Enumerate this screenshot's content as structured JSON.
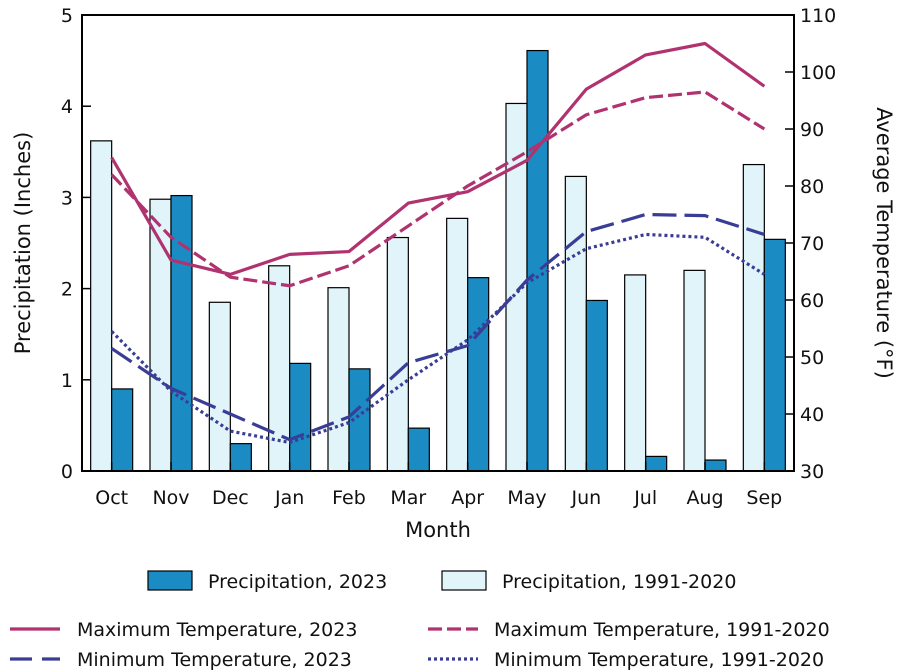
{
  "chart_data": {
    "type": "bar",
    "xlabel": "Month",
    "ylabel_left": "Precipitation (Inches)",
    "ylabel_right": "Average Temperature (°F)",
    "ylim_left": [
      0,
      5
    ],
    "ylim_right": [
      30,
      110
    ],
    "yticks_left": [
      "0",
      "1",
      "2",
      "3",
      "4",
      "5"
    ],
    "yticks_right": [
      "30",
      "40",
      "50",
      "60",
      "70",
      "80",
      "90",
      "100",
      "110"
    ],
    "categories": [
      "Oct",
      "Nov",
      "Dec",
      "Jan",
      "Feb",
      "Mar",
      "Apr",
      "May",
      "Jun",
      "Jul",
      "Aug",
      "Sep"
    ],
    "grid": false,
    "legend_position": "bottom",
    "bar_series": [
      {
        "name": "Precipitation, 1991-2020",
        "color": "#e0f4fa",
        "values": [
          3.62,
          2.98,
          1.85,
          2.25,
          2.01,
          2.56,
          2.77,
          4.03,
          3.23,
          2.15,
          2.2,
          3.36
        ]
      },
      {
        "name": "Precipitation, 2023",
        "color": "#1b8cc3",
        "values": [
          0.9,
          3.02,
          0.3,
          1.18,
          1.12,
          0.47,
          2.12,
          4.61,
          1.87,
          0.16,
          0.12,
          2.54
        ]
      }
    ],
    "line_series": [
      {
        "name": "Maximum Temperature, 2023",
        "color": "#b0336f",
        "style": "solid",
        "values": [
          85,
          67,
          64.5,
          68,
          68.5,
          77,
          79,
          84.5,
          97,
          103,
          105,
          97.5
        ]
      },
      {
        "name": "Maximum Temperature, 1991-2020",
        "color": "#b0336f",
        "style": "dashed",
        "values": [
          82,
          71,
          64,
          62.5,
          66,
          73,
          80,
          86,
          92.5,
          95.5,
          96.5,
          90
        ]
      },
      {
        "name": "Minimum Temperature, 2023",
        "color": "#3a3d95",
        "style": "longdash",
        "values": [
          51.5,
          44.5,
          40,
          35.5,
          39.5,
          49,
          52,
          63.5,
          72,
          75,
          74.8,
          71.5
        ]
      },
      {
        "name": "Minimum Temperature, 1991-2020",
        "color": "#3a3d95",
        "style": "dotted",
        "values": [
          54.5,
          44,
          37,
          35,
          38.5,
          46,
          53,
          63,
          69,
          71.5,
          71,
          64.5
        ]
      }
    ]
  }
}
